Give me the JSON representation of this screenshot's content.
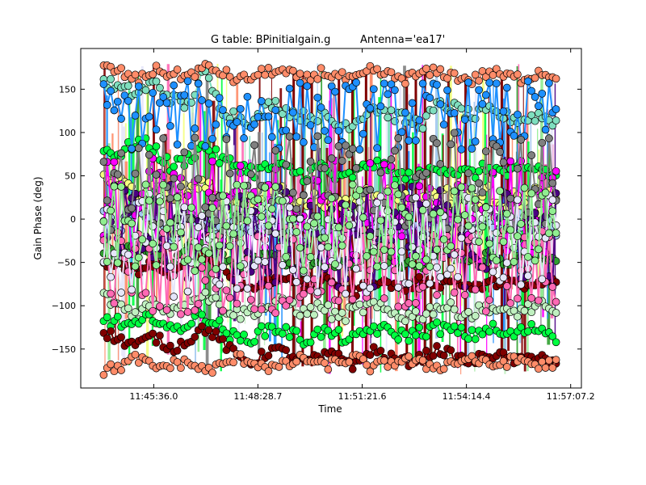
{
  "chart_data": {
    "type": "scatter",
    "title_left": "G table: BPinitialgain.g",
    "title_right": "Antenna='ea17'",
    "xlabel": "Time",
    "ylabel": "Gain Phase (deg)",
    "x_tick_labels": [
      "11:45:36.0",
      "11:48:28.7",
      "11:51:21.6",
      "11:54:14.4",
      "11:57:07.2"
    ],
    "x_tick_seconds": [
      42336.0,
      42508.7,
      42681.6,
      42854.4,
      43027.2
    ],
    "xlim_seconds": [
      42215.0,
      43045.0
    ],
    "data_x_range_seconds": [
      42253.0,
      43003.0
    ],
    "y_ticks": [
      -150,
      -100,
      -50,
      0,
      50,
      100,
      150
    ],
    "ylim": [
      -195,
      197
    ],
    "grid": false,
    "marker": "o",
    "connected": true,
    "series": [
      {
        "color": "#7fdfbf",
        "center": 125,
        "spread": 14,
        "values": [
          160,
          150,
          145,
          158,
          140,
          130,
          170,
          128,
          118,
          112,
          135,
          125,
          118,
          120,
          108,
          112,
          130,
          122,
          115,
          110,
          132,
          128,
          118,
          124,
          118,
          115,
          120,
          112
        ]
      },
      {
        "color": "#00ff40",
        "center": 65,
        "spread": 15,
        "values": [
          80,
          75,
          90,
          82,
          60,
          70,
          85,
          68,
          62,
          55,
          60,
          58,
          50,
          62,
          45,
          52,
          65,
          55,
          48,
          50,
          62,
          55,
          52,
          60,
          52,
          55,
          60,
          48
        ]
      },
      {
        "color": "#f5ff80",
        "center": 30,
        "spread": 20,
        "values": [
          50,
          40,
          30,
          45,
          20,
          35,
          40,
          15,
          25,
          20,
          35,
          30,
          20,
          25,
          15,
          20,
          35,
          28,
          22,
          18,
          30,
          26,
          22,
          30,
          20,
          25,
          30,
          18
        ]
      },
      {
        "color": "#a0c8f0",
        "center": -5,
        "spread": 20,
        "values": [
          5,
          -10,
          10,
          0,
          -20,
          -5,
          5,
          -15,
          -10,
          -5,
          0,
          -10,
          -20,
          -5,
          -15,
          -10,
          0,
          -8,
          -12,
          -15,
          0,
          -5,
          -10,
          0,
          -10,
          -5,
          0,
          -12
        ]
      },
      {
        "color": "#30a030",
        "center": -40,
        "spread": 12,
        "values": [
          -35,
          -40,
          -30,
          -45,
          -50,
          -35,
          -30,
          -40,
          -55,
          -45,
          -40,
          -50,
          -60,
          -45,
          -55,
          -50,
          -40,
          -48,
          -52,
          -55,
          -40,
          -45,
          -50,
          -40,
          -50,
          -45,
          -40,
          -52
        ]
      },
      {
        "color": "#800000",
        "center": -70,
        "spread": 10,
        "values": [
          -50,
          -55,
          -60,
          -50,
          -70,
          -45,
          -40,
          -55,
          -75,
          -80,
          -70,
          -65,
          -80,
          -70,
          -75,
          -85,
          -70,
          -75,
          -80,
          -70,
          -75,
          -70,
          -80,
          -75,
          -70,
          -80,
          -75,
          -70
        ]
      },
      {
        "color": "#c0f0c0",
        "center": -100,
        "spread": 15,
        "values": [
          -90,
          -100,
          -110,
          -95,
          -105,
          -90,
          -85,
          -100,
          -110,
          -105,
          -100,
          -95,
          -110,
          -100,
          -115,
          -105,
          -100,
          -108,
          -112,
          -110,
          -100,
          -105,
          -110,
          -100,
          -110,
          -105,
          -100,
          -112
        ]
      },
      {
        "color": "#00ff40",
        "center": -125,
        "spread": 15,
        "values": [
          -115,
          -120,
          -125,
          -110,
          -130,
          -120,
          -110,
          -125,
          -140,
          -135,
          -125,
          -130,
          -140,
          -130,
          -135,
          -140,
          -125,
          -130,
          -135,
          -130,
          -125,
          -130,
          -135,
          -125,
          -135,
          -130,
          -125,
          -135
        ]
      },
      {
        "color": "#800000",
        "center": -150,
        "spread": 12,
        "values": [
          -130,
          -140,
          -145,
          -135,
          -150,
          -140,
          -125,
          -140,
          -160,
          -165,
          -150,
          -155,
          -165,
          -160,
          -155,
          -170,
          -150,
          -160,
          -165,
          -160,
          -150,
          -160,
          -165,
          -155,
          -160,
          -165,
          -155,
          -170
        ]
      },
      {
        "color": "#ff8c69",
        "center": 165,
        "spread": 12,
        "values": [
          175,
          170,
          160,
          172,
          168,
          165,
          175,
          170,
          160,
          165,
          172,
          168,
          160,
          170,
          165,
          160,
          172,
          166,
          162,
          168,
          170,
          165,
          160,
          170,
          165,
          162,
          170,
          165
        ]
      },
      {
        "color": "#ff8c69",
        "center": -165,
        "spread": 12,
        "values": [
          -175,
          -170,
          -160,
          -172,
          -168,
          -165,
          -175,
          -170,
          -160,
          -165,
          -172,
          -168,
          -160,
          -170,
          -165,
          -160,
          -172,
          -166,
          -162,
          -168,
          -170,
          -165,
          -160,
          -170,
          -165,
          -162,
          -170,
          -165
        ]
      },
      {
        "color": "#1e90ff",
        "center": 120,
        "spread": 40,
        "values": []
      },
      {
        "color": "#ff00ff",
        "center": 10,
        "spread": 60,
        "values": []
      },
      {
        "color": "#4b0082",
        "center": -20,
        "spread": 60,
        "values": []
      },
      {
        "color": "#ff69b4",
        "center": -60,
        "spread": 50,
        "values": []
      },
      {
        "color": "#808080",
        "center": 40,
        "spread": 60,
        "values": []
      },
      {
        "color": "#e6e6fa",
        "center": -30,
        "spread": 60,
        "values": []
      },
      {
        "color": "#90ee90",
        "center": -10,
        "spread": 50,
        "values": []
      }
    ]
  }
}
